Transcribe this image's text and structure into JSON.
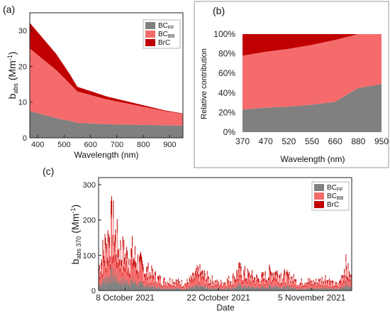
{
  "chart_data": [
    {
      "panel": "(a)",
      "type": "area",
      "stacked": true,
      "x": [
        370,
        470,
        520,
        550,
        660,
        880,
        950
      ],
      "series": [
        {
          "name": "BC_FF",
          "color": "#808080",
          "values": [
            7.5,
            5.5,
            4.8,
            4.2,
            3.8,
            3.5,
            3.4
          ]
        },
        {
          "name": "BC_BB",
          "color": "#f56b6b",
          "values": [
            17.5,
            13.5,
            10.5,
            8.8,
            7.0,
            4.0,
            3.3
          ]
        },
        {
          "name": "BrC",
          "color": "#c00000",
          "values": [
            7.2,
            4.5,
            2.7,
            1.3,
            0.8,
            0.2,
            0.1
          ]
        }
      ],
      "xlim": [
        370,
        950
      ],
      "ylim": [
        0,
        35
      ],
      "xticks": [
        400,
        500,
        600,
        700,
        800,
        900
      ],
      "yticks": [
        0,
        10,
        20,
        30
      ],
      "xlabel": "Wavelength (nm)",
      "ylabel_main": "b",
      "ylabel_sub": "abs",
      "ylabel_unit": "(Mm",
      "ylabel_sup": "-1",
      "ylabel_close": ")",
      "legend_position": "top-right",
      "legend": [
        {
          "main": "BC",
          "sub": "FF"
        },
        {
          "main": "BC",
          "sub": "BB"
        },
        {
          "main": "BrC",
          "sub": ""
        }
      ]
    },
    {
      "panel": "(b)",
      "type": "area",
      "stacked": true,
      "categories": [
        "370",
        "470",
        "520",
        "550",
        "660",
        "880",
        "950"
      ],
      "series": [
        {
          "name": "BC_FF",
          "color": "#808080",
          "values": [
            23,
            25,
            26,
            28,
            31,
            45,
            49
          ]
        },
        {
          "name": "BC_BB",
          "color": "#f56b6b",
          "values": [
            55,
            57,
            59,
            61,
            63,
            55,
            51
          ]
        },
        {
          "name": "BrC",
          "color": "#c00000",
          "values": [
            22,
            18,
            15,
            11,
            6,
            0,
            0
          ]
        }
      ],
      "ylim": [
        0,
        100
      ],
      "yticks": [
        "0%",
        "20%",
        "40%",
        "60%",
        "80%",
        "100%"
      ],
      "xlabel": "Wavelength (nm)",
      "ylabel": "Relative contribution"
    },
    {
      "panel": "(c)",
      "type": "area",
      "stacked": true,
      "x_range": [
        "2021-10-04",
        "2021-11-11"
      ],
      "daily_total_envelope": [
        {
          "date": "2021-10-04",
          "value": 100
        },
        {
          "date": "2021-10-05",
          "value": 200
        },
        {
          "date": "2021-10-06",
          "value": 280
        },
        {
          "date": "2021-10-07",
          "value": 180
        },
        {
          "date": "2021-10-08",
          "value": 150
        },
        {
          "date": "2021-10-09",
          "value": 160
        },
        {
          "date": "2021-10-10",
          "value": 120
        },
        {
          "date": "2021-10-11",
          "value": 90
        },
        {
          "date": "2021-10-12",
          "value": 70
        },
        {
          "date": "2021-10-13",
          "value": 50
        },
        {
          "date": "2021-10-14",
          "value": 40
        },
        {
          "date": "2021-10-15",
          "value": 45
        },
        {
          "date": "2021-10-16",
          "value": 35
        },
        {
          "date": "2021-10-17",
          "value": 30
        },
        {
          "date": "2021-10-18",
          "value": 50
        },
        {
          "date": "2021-10-19",
          "value": 80
        },
        {
          "date": "2021-10-20",
          "value": 60
        },
        {
          "date": "2021-10-21",
          "value": 45
        },
        {
          "date": "2021-10-22",
          "value": 30
        },
        {
          "date": "2021-10-23",
          "value": 40
        },
        {
          "date": "2021-10-24",
          "value": 50
        },
        {
          "date": "2021-10-25",
          "value": 85
        },
        {
          "date": "2021-10-26",
          "value": 70
        },
        {
          "date": "2021-10-27",
          "value": 60
        },
        {
          "date": "2021-10-28",
          "value": 50
        },
        {
          "date": "2021-10-29",
          "value": 60
        },
        {
          "date": "2021-10-30",
          "value": 85
        },
        {
          "date": "2021-10-31",
          "value": 75
        },
        {
          "date": "2021-11-01",
          "value": 60
        },
        {
          "date": "2021-11-02",
          "value": 55
        },
        {
          "date": "2021-11-03",
          "value": 30
        },
        {
          "date": "2021-11-04",
          "value": 45
        },
        {
          "date": "2021-11-05",
          "value": 35
        },
        {
          "date": "2021-11-06",
          "value": 40
        },
        {
          "date": "2021-11-07",
          "value": 55
        },
        {
          "date": "2021-11-08",
          "value": 30
        },
        {
          "date": "2021-11-09",
          "value": 25
        },
        {
          "date": "2021-11-10",
          "value": 110
        },
        {
          "date": "2021-11-11",
          "value": 40
        }
      ],
      "fractions": {
        "BC_FF": 0.25,
        "BC_BB": 0.55,
        "BrC": 0.2
      },
      "ylim": [
        0,
        320
      ],
      "yticks": [
        0,
        100,
        200,
        300
      ],
      "xticks": [
        {
          "date": "2021-10-08",
          "label": "8 October 2021"
        },
        {
          "date": "2021-10-22",
          "label": "22 October 2021"
        },
        {
          "date": "2021-11-05",
          "label": "5 November 2021"
        }
      ],
      "xlabel": "Date",
      "ylabel_main": "b",
      "ylabel_sub": "abs 370",
      "ylabel_unit": "(Mm",
      "ylabel_sup": "-1",
      "ylabel_close": ")",
      "legend_position": "top-right",
      "legend": [
        {
          "main": "BC",
          "sub": "FF"
        },
        {
          "main": "BC",
          "sub": "BB"
        },
        {
          "main": "BrC",
          "sub": ""
        }
      ]
    }
  ]
}
